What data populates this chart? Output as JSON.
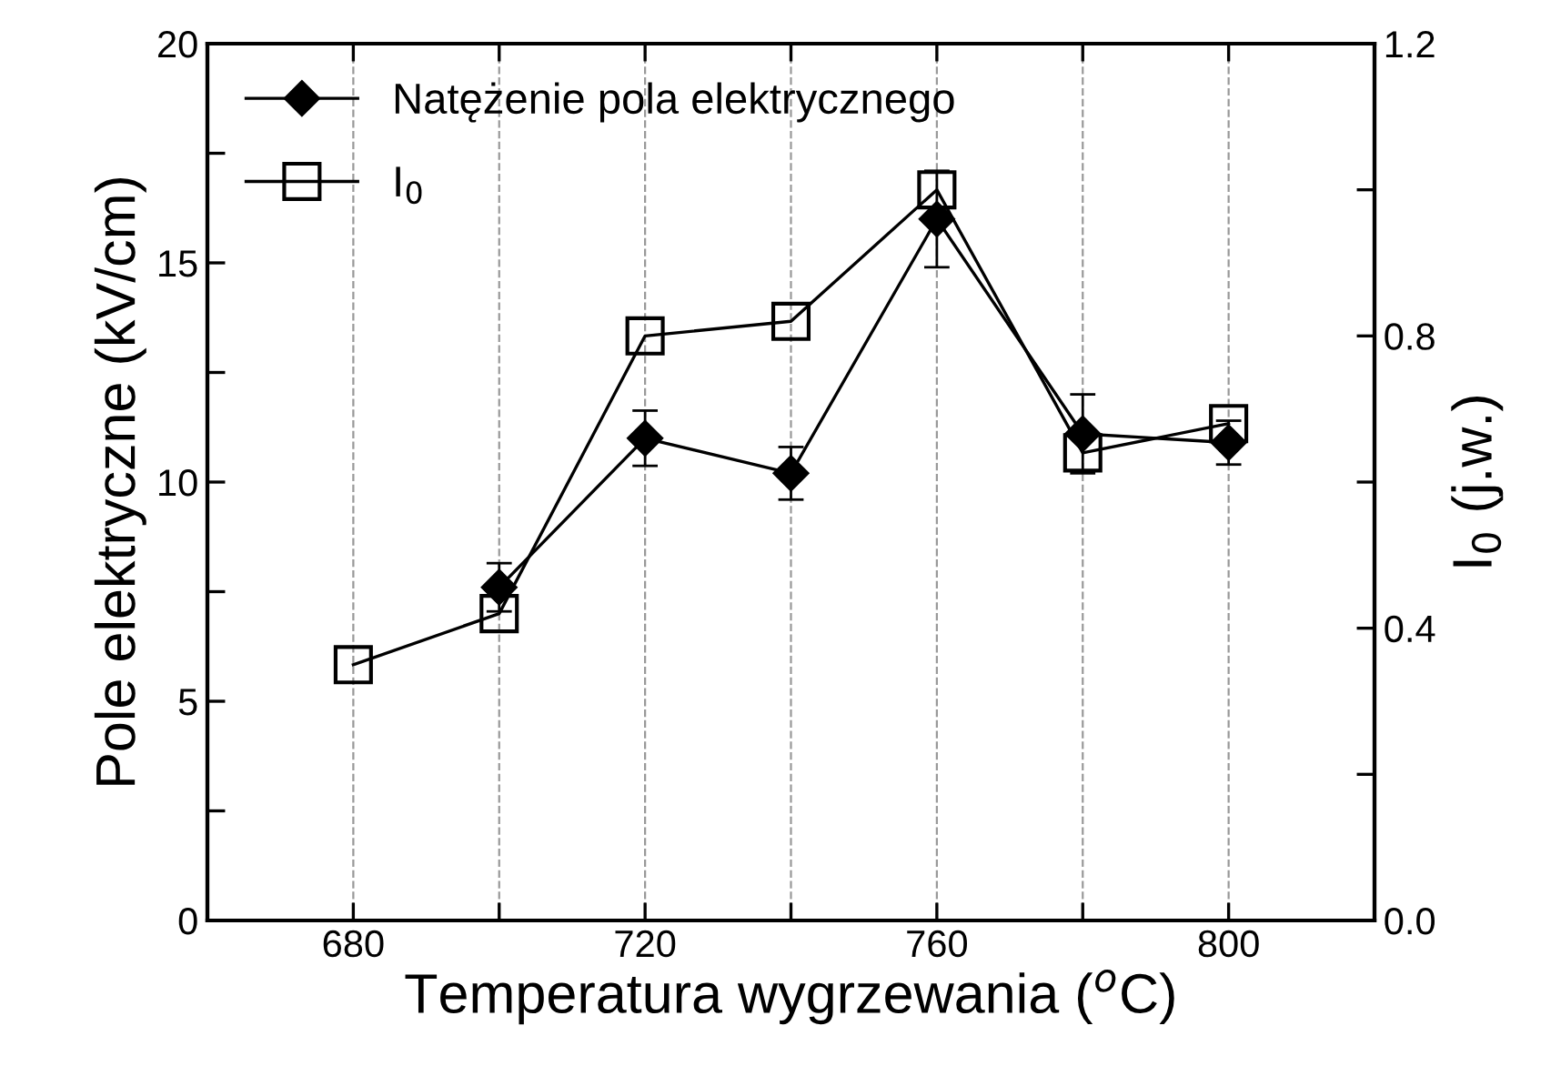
{
  "chart_data": {
    "type": "line",
    "xlabel": "Temperatura wygrzewania ($^{o}$C)",
    "ylabel": "Pole elektryczne (kV/cm)",
    "y2label": "I$_{0}$ (j.w.)",
    "x": [
      680,
      700,
      720,
      740,
      760,
      780,
      800
    ],
    "series": [
      {
        "name": "Natężenie pola elektrycznego",
        "color": "#000000",
        "marker": "diamond",
        "values": [
          null,
          7.6,
          11.0,
          10.2,
          16.0,
          11.1,
          10.9
        ],
        "errors": [
          null,
          0.55,
          0.63,
          0.6,
          1.1,
          0.9,
          0.5
        ]
      },
      {
        "name": "I$_{0}$",
        "color": "#000000",
        "marker": "square",
        "axis": "y2",
        "values": [
          0.35,
          0.42,
          0.8,
          0.82,
          1.0,
          0.64,
          0.68
        ]
      }
    ],
    "xlim": [
      660,
      820
    ],
    "xticks": [
      {
        "value": 660,
        "label": null
      },
      680,
      {
        "value": 700,
        "label": null
      },
      720,
      {
        "value": 740,
        "label": null
      },
      760,
      {
        "value": 780,
        "label": null
      },
      800,
      {
        "value": 820,
        "label": null
      }
    ],
    "ylim": [
      0,
      20
    ],
    "yticks": [
      0,
      {
        "value": 2.5,
        "label": null
      },
      5,
      {
        "value": 7.5,
        "label": null
      },
      10,
      {
        "value": 12.5,
        "label": null
      },
      15,
      {
        "value": 17.5,
        "label": null
      },
      20
    ],
    "y2lim": [
      0,
      1.2
    ],
    "y2ticks": [
      {
        "value": 0,
        "label": "0.0"
      },
      {
        "value": 0.2,
        "label": null
      },
      {
        "value": 0.4,
        "label": "0.4"
      },
      {
        "value": 0.6,
        "label": null
      },
      {
        "value": 0.8,
        "label": "0.8"
      },
      {
        "value": 1.0,
        "label": null
      },
      {
        "value": 1.2,
        "label": "1.2"
      }
    ],
    "grid": "x",
    "legend": "top left",
    "line_style": "solid"
  }
}
